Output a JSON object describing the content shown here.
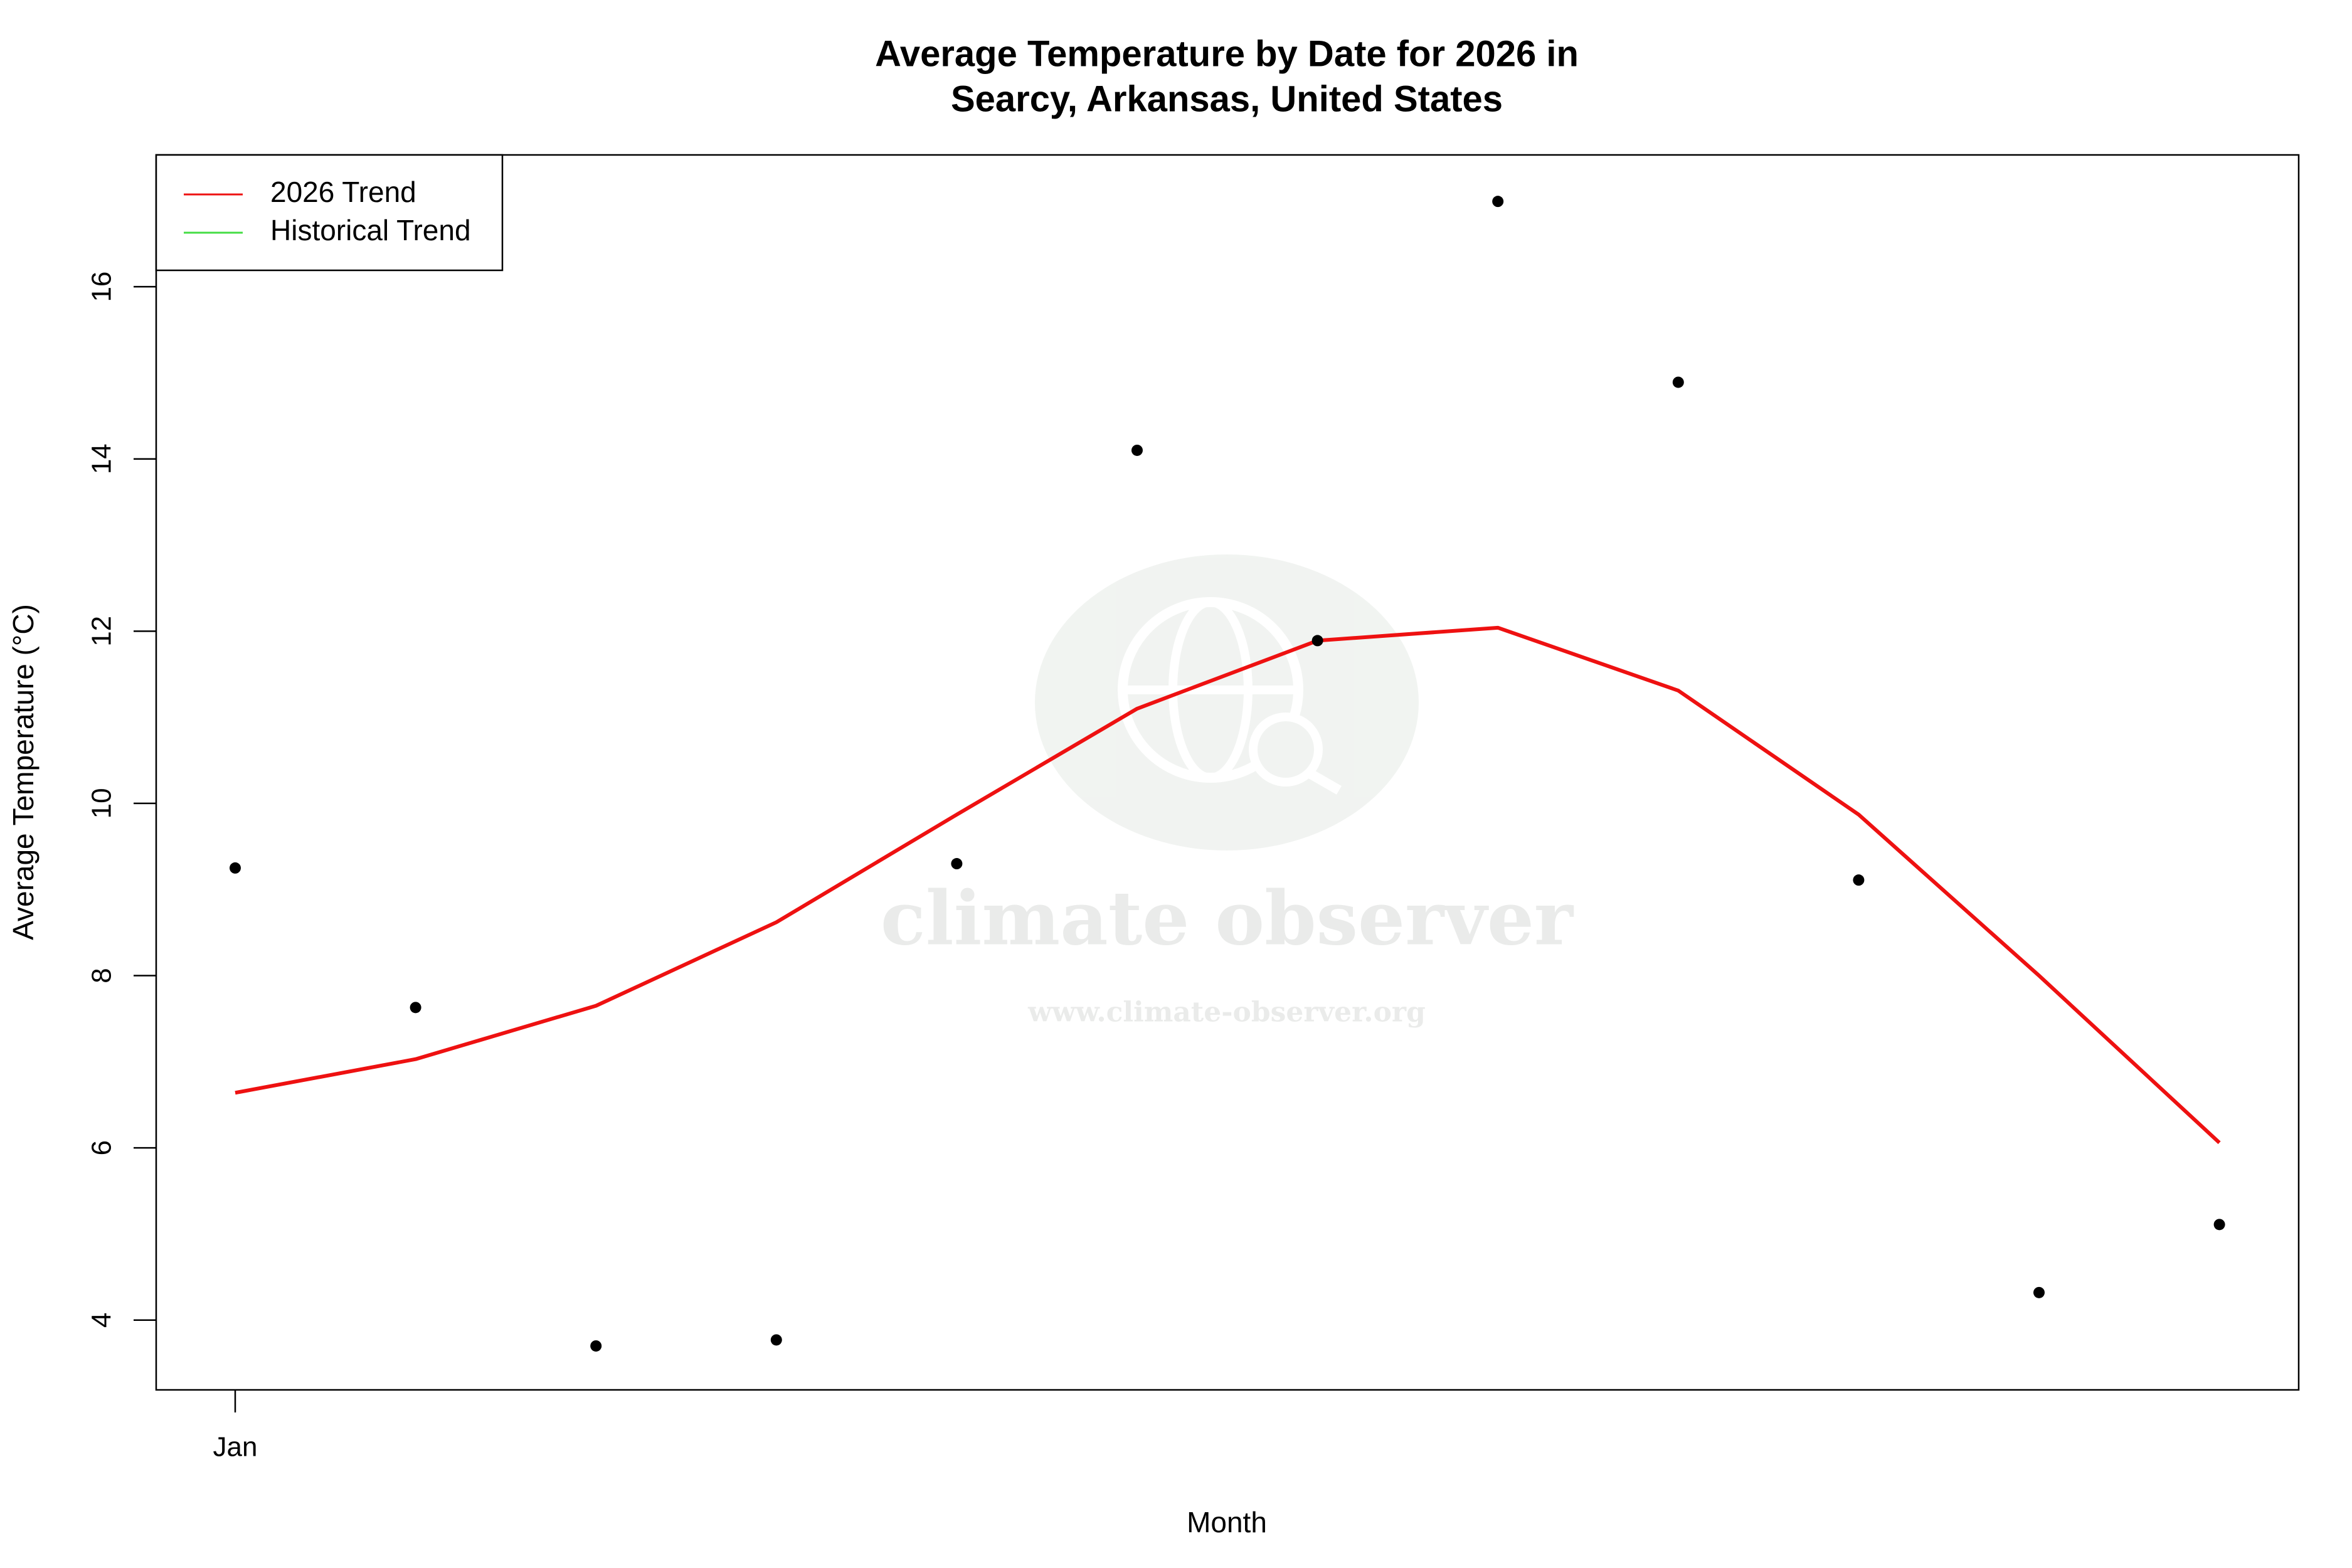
{
  "chart_data": {
    "type": "line",
    "title": "Average Temperature by Date for 2026 in",
    "subtitle": "Searcy, Arkansas, United States",
    "x_label": "Month",
    "y_label": "Average Temperature (°C)",
    "categories": [
      "Jan",
      null,
      null,
      null,
      null,
      null,
      null,
      null,
      null,
      null,
      null,
      null
    ],
    "points": {
      "color": "#000000",
      "values": [
        9.25,
        7.63,
        3.7,
        3.77,
        9.3,
        14.1,
        11.89,
        16.99,
        14.89,
        9.11,
        4.32,
        5.11
      ]
    },
    "series": [
      {
        "name": "2026 Trend",
        "color": "#ee1111",
        "values": [
          6.64,
          7.03,
          7.65,
          8.62,
          9.87,
          11.1,
          11.89,
          12.04,
          11.31,
          9.87,
          8.0,
          6.06
        ]
      },
      {
        "name": "Historical Trend",
        "color": "#44dd44",
        "values": [
          null,
          null,
          null,
          null,
          null,
          null,
          null,
          null,
          null,
          null,
          null,
          null
        ]
      }
    ],
    "ylim": [
      3.19,
      17.53
    ],
    "yticks": [
      4,
      6,
      8,
      10,
      12,
      14,
      16
    ],
    "grid": false,
    "legend": "top-left",
    "watermark_name": "climate observer",
    "watermark_url": "www.climate-observer.org"
  }
}
